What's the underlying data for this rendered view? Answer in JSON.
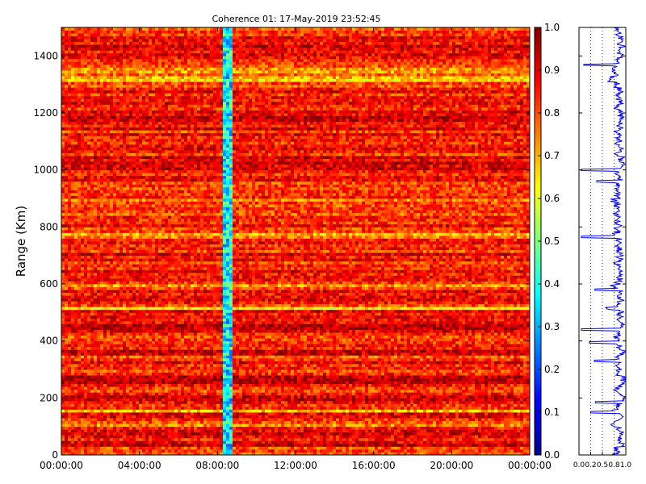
{
  "chart_data": [
    {
      "type": "heatmap",
      "title": "Coherence 01: 17-May-2019 23:52:45",
      "xlabel": "",
      "ylabel": "Range (Km)",
      "x_ticks": [
        "00:00:00",
        "04:00:00",
        "08:00:00",
        "12:00:00",
        "16:00:00",
        "20:00:00",
        "00:00:00"
      ],
      "x_range_hours": [
        0,
        24
      ],
      "y_ticks": [
        0,
        200,
        400,
        600,
        800,
        1000,
        1200,
        1400
      ],
      "ylim": [
        0,
        1500
      ],
      "colormap": "jet",
      "colorbar": {
        "ticks": [
          0.0,
          0.1,
          0.2,
          0.3,
          0.4,
          0.5,
          0.6,
          0.7,
          0.8,
          0.9,
          1.0
        ],
        "labels": [
          "0.0",
          "0.1",
          "0.2",
          "0.3",
          "0.4",
          "0.5",
          "0.6",
          "0.7",
          "0.8",
          "0.9",
          "1.0"
        ],
        "range": [
          0,
          1
        ]
      },
      "vertical_low_band_hours": [
        8.35,
        8.75
      ],
      "range_profile_km": [
        0.78,
        0.82,
        0.8,
        0.94,
        0.9,
        0.85,
        0.88,
        0.92,
        0.9,
        0.86,
        0.74,
        0.8,
        0.83,
        0.9,
        0.9,
        0.68,
        0.84,
        0.82,
        0.87,
        0.93,
        0.92,
        0.86,
        0.8,
        0.82,
        0.86,
        0.95,
        0.95,
        0.94,
        0.84,
        0.8,
        0.86,
        0.83,
        0.9,
        0.83,
        0.78,
        0.92,
        0.94,
        0.84,
        0.86,
        0.83,
        0.82,
        0.8,
        0.84,
        0.9,
        0.95,
        0.95,
        0.88,
        0.86,
        0.9,
        0.85,
        0.9,
        0.62,
        0.8,
        0.86,
        0.9,
        0.88,
        0.86,
        0.9,
        0.8,
        0.72,
        0.82,
        0.88,
        0.87,
        0.85,
        0.9,
        0.82,
        0.85,
        0.8,
        0.9,
        0.84,
        0.92,
        0.8,
        0.86,
        0.82,
        0.88,
        0.86,
        0.76,
        0.7,
        0.82,
        0.8,
        0.9,
        0.82,
        0.84,
        0.86,
        0.78,
        0.82,
        0.84,
        0.8,
        0.82,
        0.74,
        0.86,
        0.82,
        0.84,
        0.8,
        0.82,
        0.8,
        0.9,
        0.88,
        0.82,
        0.86,
        0.92,
        0.9,
        0.94,
        0.88,
        0.92,
        0.8,
        0.86,
        0.9,
        0.88,
        0.82,
        0.86,
        0.84,
        0.9,
        0.8,
        0.92,
        0.86,
        0.88,
        0.92,
        0.94,
        0.88,
        0.9,
        0.82,
        0.84,
        0.9,
        0.86,
        0.88,
        0.82,
        0.9,
        0.86,
        0.78,
        0.82,
        0.66,
        0.7,
        0.78,
        0.72,
        0.74,
        0.8,
        0.82,
        0.84,
        0.88,
        0.9,
        0.86,
        0.9,
        0.92,
        0.86,
        0.88,
        0.9,
        0.82,
        0.84,
        0.78
      ],
      "range_profile_step_km": 10,
      "range_profile_dips": [
        {
          "range_km": 1368,
          "value": 0.1
        },
        {
          "range_km": 1000,
          "value": 0.05
        },
        {
          "range_km": 960,
          "value": 0.38
        },
        {
          "range_km": 765,
          "value": 0.05
        },
        {
          "range_km": 580,
          "value": 0.34
        },
        {
          "range_km": 440,
          "value": 0.05
        },
        {
          "range_km": 395,
          "value": 0.22
        },
        {
          "range_km": 330,
          "value": 0.33
        },
        {
          "range_km": 185,
          "value": 0.35
        },
        {
          "range_km": 150,
          "value": 0.25
        }
      ]
    },
    {
      "type": "line",
      "title": "",
      "xlabel": "",
      "ylabel": "",
      "x_ticks": [
        "0.0",
        "0.2",
        "0.5",
        "0.8",
        "1.0"
      ],
      "xlim": [
        0,
        1
      ],
      "ylim": [
        0,
        1500
      ],
      "grid": "vertical dotted",
      "line_color": "#0000ff"
    }
  ]
}
